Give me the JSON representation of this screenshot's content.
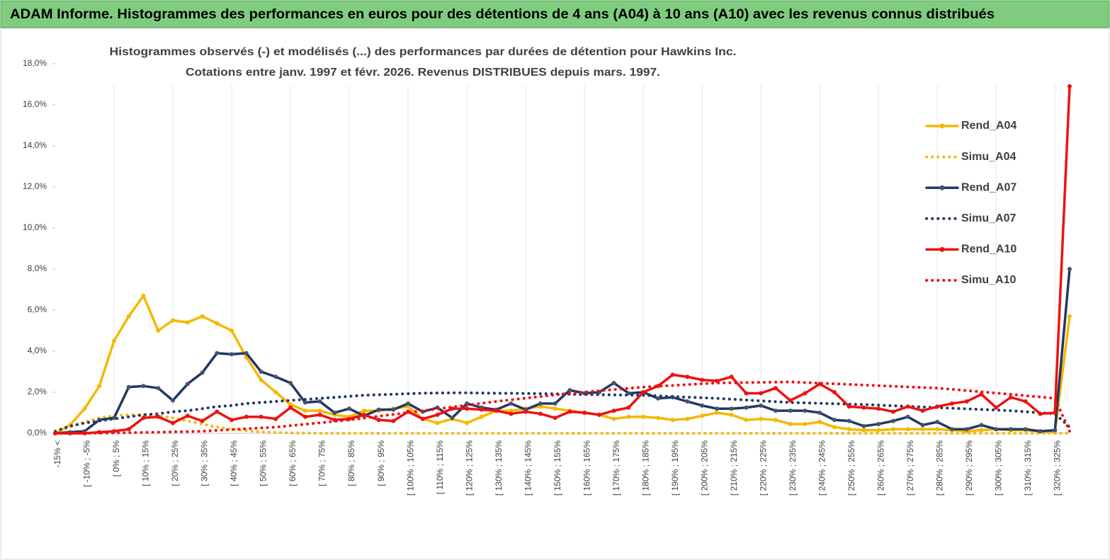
{
  "chart_data": {
    "type": "line",
    "banner": "ADAM Informe. Histogrammes des performances en euros pour des détentions de 4 ans (A04) à 10 ans (A10) avec les revenus connus distribués",
    "title": [
      "Histogrammes observés (-) et modélisés (...) des performances par durées de détention pour Hawkins Inc.",
      "Cotations entre janv. 1997 et févr.  2026. Revenus DISTRIBUES depuis mars. 1997."
    ],
    "categories": [
      "-15% <",
      null,
      "[ -10% ; -5%",
      null,
      "[ 0% ; 5%",
      null,
      "[ 10% ; 15%",
      null,
      "[ 20% ; 25%",
      null,
      "[ 30% ; 35%",
      null,
      "[ 40% ; 45%",
      null,
      "[ 50% ; 55%",
      null,
      "[ 60% ; 65%",
      null,
      "[ 70% ; 75%",
      null,
      "[ 80% ; 85%",
      null,
      "[ 90% ; 95%",
      null,
      "[ 100% ; 105%",
      null,
      "[ 110% ; 115%",
      null,
      "[ 120% ; 125%",
      null,
      "[ 130% ; 135%",
      null,
      "[ 140% ; 145%",
      null,
      "[ 150% ; 155%",
      null,
      "[ 160% ; 165%",
      null,
      "[ 170% ; 175%",
      null,
      "[ 180% ; 185%",
      null,
      "[ 190% ; 195%",
      null,
      "[ 200% ; 205%",
      null,
      "[ 210% ; 215%",
      null,
      "[ 220% ; 225%",
      null,
      "[ 230% ; 235%",
      null,
      "[ 240% ; 245%",
      null,
      "[ 250% ; 255%",
      null,
      "[ 260% ; 265%",
      null,
      "[ 270% ; 275%",
      null,
      "[ 280% ; 285%",
      null,
      "[ 290% ; 295%",
      null,
      "[ 300% ; 305%",
      null,
      "[ 310% ; 315%",
      null,
      "[ 320% ; 325%",
      null
    ],
    "series": [
      {
        "name": "Rend_A04",
        "color": "#f5b800",
        "style": "solid",
        "markers": true,
        "values": [
          0,
          0.4,
          1.2,
          2.3,
          4.5,
          5.7,
          6.7,
          5.0,
          5.5,
          5.4,
          5.7,
          5.35,
          5.0,
          3.7,
          2.6,
          2.0,
          1.4,
          1.1,
          1.1,
          0.9,
          0.8,
          1.1,
          1.1,
          1.2,
          1.3,
          0.7,
          0.5,
          0.7,
          0.5,
          0.8,
          1.1,
          1.1,
          1.2,
          1.3,
          1.2,
          1.1,
          1.0,
          0.9,
          0.7,
          0.8,
          0.8,
          0.75,
          0.65,
          0.7,
          0.85,
          1.0,
          0.9,
          0.65,
          0.7,
          0.65,
          0.45,
          0.45,
          0.55,
          0.3,
          0.2,
          0.15,
          0.15,
          0.2,
          0.2,
          0.2,
          0.2,
          0.15,
          0.1,
          0.15,
          0.2,
          0.15,
          0.15,
          0.1,
          0.05,
          5.7
        ]
      },
      {
        "name": "Simu_A04",
        "color": "#f5b800",
        "style": "dotted",
        "markers": false,
        "values": [
          0,
          0.3,
          0.55,
          0.75,
          0.85,
          0.9,
          0.9,
          0.85,
          0.75,
          0.6,
          0.45,
          0.3,
          0.2,
          0.12,
          0.07,
          0.04,
          0.02,
          0.01,
          0,
          0,
          0,
          0,
          0,
          0,
          0,
          0,
          0,
          0,
          0,
          0,
          0,
          0,
          0,
          0,
          0,
          0,
          0,
          0,
          0,
          0,
          0,
          0,
          0,
          0,
          0,
          0,
          0,
          0,
          0,
          0,
          0,
          0,
          0,
          0,
          0,
          0,
          0,
          0,
          0,
          0,
          0,
          0,
          0,
          0,
          0,
          0,
          0,
          0,
          0,
          0
        ]
      },
      {
        "name": "Rend_A07",
        "color": "#1f3864",
        "style": "solid",
        "markers": true,
        "values": [
          0,
          0.05,
          0.1,
          0.65,
          0.75,
          2.25,
          2.3,
          2.2,
          1.6,
          2.4,
          2.95,
          3.9,
          3.85,
          3.9,
          3.0,
          2.75,
          2.45,
          1.5,
          1.55,
          1.0,
          1.2,
          0.85,
          1.15,
          1.15,
          1.45,
          1.05,
          1.25,
          0.75,
          1.45,
          1.25,
          1.15,
          1.45,
          1.15,
          1.45,
          1.45,
          2.1,
          1.95,
          2.0,
          2.45,
          1.95,
          2.0,
          1.7,
          1.75,
          1.55,
          1.35,
          1.2,
          1.2,
          1.25,
          1.35,
          1.1,
          1.1,
          1.1,
          1.0,
          0.65,
          0.6,
          0.35,
          0.45,
          0.6,
          0.8,
          0.4,
          0.55,
          0.2,
          0.2,
          0.4,
          0.2,
          0.2,
          0.2,
          0.1,
          0.15,
          8.0
        ]
      },
      {
        "name": "Simu_A07",
        "color": "#1f3864",
        "style": "dotted",
        "markers": false,
        "values": [
          0.1,
          0.35,
          0.5,
          0.6,
          0.7,
          0.8,
          0.9,
          0.95,
          1.05,
          1.1,
          1.2,
          1.3,
          1.35,
          1.45,
          1.5,
          1.55,
          1.6,
          1.65,
          1.7,
          1.75,
          1.8,
          1.85,
          1.88,
          1.9,
          1.93,
          1.95,
          1.96,
          1.97,
          1.97,
          1.96,
          1.95,
          1.95,
          1.94,
          1.93,
          1.92,
          1.9,
          1.89,
          1.88,
          1.87,
          1.86,
          1.85,
          1.82,
          1.79,
          1.76,
          1.73,
          1.7,
          1.66,
          1.62,
          1.58,
          1.54,
          1.5,
          1.48,
          1.46,
          1.44,
          1.42,
          1.4,
          1.37,
          1.34,
          1.31,
          1.28,
          1.25,
          1.22,
          1.19,
          1.16,
          1.13,
          1.1,
          1.05,
          1.0,
          0.95,
          0.3
        ]
      },
      {
        "name": "Rend_A10",
        "color": "#ee1111",
        "style": "solid",
        "markers": true,
        "values": [
          0,
          0,
          0,
          0.05,
          0.1,
          0.2,
          0.75,
          0.8,
          0.5,
          0.85,
          0.6,
          1.05,
          0.65,
          0.8,
          0.8,
          0.7,
          1.25,
          0.8,
          0.9,
          0.65,
          0.7,
          0.9,
          0.65,
          0.6,
          1.05,
          0.7,
          0.9,
          1.2,
          1.2,
          1.15,
          1.1,
          0.95,
          1.05,
          0.95,
          0.75,
          1.05,
          1.0,
          0.9,
          1.1,
          1.25,
          2.0,
          2.3,
          2.85,
          2.75,
          2.6,
          2.55,
          2.75,
          1.95,
          1.95,
          2.2,
          1.6,
          1.95,
          2.4,
          2.0,
          1.3,
          1.25,
          1.2,
          1.05,
          1.3,
          1.1,
          1.3,
          1.45,
          1.55,
          1.9,
          1.25,
          1.75,
          1.55,
          0.95,
          1.0,
          16.9
        ]
      },
      {
        "name": "Simu_A10",
        "color": "#ee1111",
        "style": "dotted",
        "markers": false,
        "values": [
          0,
          0,
          0,
          0.01,
          0.02,
          0.03,
          0.04,
          0.05,
          0.07,
          0.08,
          0.1,
          0.14,
          0.18,
          0.22,
          0.26,
          0.3,
          0.37,
          0.44,
          0.51,
          0.58,
          0.65,
          0.74,
          0.83,
          0.92,
          1.01,
          1.1,
          1.19,
          1.28,
          1.37,
          1.46,
          1.55,
          1.63,
          1.71,
          1.79,
          1.87,
          1.95,
          2.01,
          2.07,
          2.13,
          2.19,
          2.25,
          2.29,
          2.33,
          2.37,
          2.41,
          2.45,
          2.46,
          2.47,
          2.48,
          2.49,
          2.5,
          2.47,
          2.44,
          2.41,
          2.38,
          2.35,
          2.32,
          2.29,
          2.26,
          2.23,
          2.2,
          2.14,
          2.08,
          2.02,
          1.96,
          1.9,
          1.83,
          1.77,
          1.7,
          0.1
        ]
      }
    ],
    "ylim": [
      0,
      18
    ],
    "yticks": [
      {
        "value": 0,
        "label": "0,0%"
      },
      {
        "value": 2,
        "label": "2,0%"
      },
      {
        "value": 4,
        "label": "4,0%"
      },
      {
        "value": 6,
        "label": "6,0%"
      },
      {
        "value": 8,
        "label": "8,0%"
      },
      {
        "value": 10,
        "label": "10,0%"
      },
      {
        "value": 12,
        "label": "12,0%"
      },
      {
        "value": 14,
        "label": "14,0%"
      },
      {
        "value": 16,
        "label": "16,0%"
      },
      {
        "value": 18,
        "label": "18,0%"
      }
    ],
    "legend": "right",
    "grid": "x"
  }
}
